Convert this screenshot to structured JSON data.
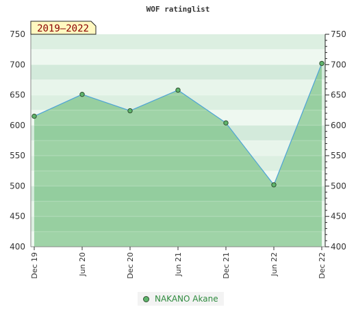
{
  "chart_data": {
    "type": "area",
    "title": "WOF ratinglist",
    "period_badge": "2019–2022",
    "x_ticks": [
      "Dec 19",
      "Jun 20",
      "Dec 20",
      "Jun 21",
      "Dec 21",
      "Jun 22",
      "Dec 22"
    ],
    "y_ticks": [
      "400",
      "450",
      "500",
      "550",
      "600",
      "650",
      "700",
      "750"
    ],
    "ylim": [
      400,
      750
    ],
    "grid": true,
    "legend_position": "bottom",
    "series": [
      {
        "name": "NAKANO Akane",
        "x": [
          "Dec 19",
          "Jun 20",
          "Dec 20",
          "Jun 21",
          "Dec 21",
          "Jun 22",
          "Dec 22"
        ],
        "values": [
          615,
          651,
          624,
          658,
          604,
          502,
          702
        ]
      }
    ],
    "colors": {
      "line": "#4da3d6",
      "fill": "#5fb56c",
      "marker": "#5fb56c",
      "badge_bg": "#fff8c0",
      "badge_text": "#8b0000",
      "legend_text": "#2e8b3e"
    }
  }
}
